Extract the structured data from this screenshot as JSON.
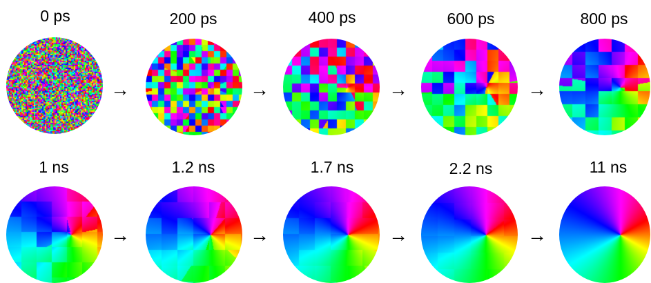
{
  "rows": [
    {
      "frames": [
        {
          "label": "0 ps",
          "disorder": 1.0
        },
        {
          "label": "200 ps",
          "disorder": 0.85
        },
        {
          "label": "400 ps",
          "disorder": 0.6
        },
        {
          "label": "600 ps",
          "disorder": 0.45
        },
        {
          "label": "800 ps",
          "disorder": 0.3
        }
      ]
    },
    {
      "frames": [
        {
          "label": "1 ns",
          "disorder": 0.12
        },
        {
          "label": "1.2 ns",
          "disorder": 0.08
        },
        {
          "label": "1.7 ns",
          "disorder": 0.04
        },
        {
          "label": "2.2 ns",
          "disorder": 0.02
        },
        {
          "label": "11 ns",
          "disorder": 0.0
        }
      ]
    }
  ],
  "arrow_glyph": "→"
}
